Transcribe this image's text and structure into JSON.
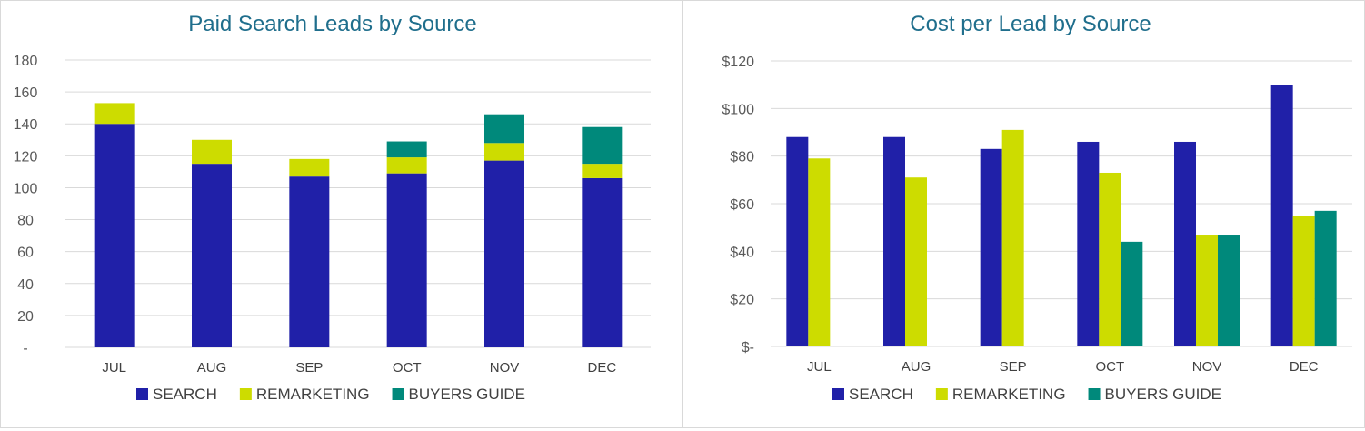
{
  "chart_data": [
    {
      "type": "bar",
      "stacked": true,
      "title": "Paid Search Leads by Source",
      "categories": [
        "JUL",
        "AUG",
        "SEP",
        "OCT",
        "NOV",
        "DEC"
      ],
      "series": [
        {
          "name": "SEARCH",
          "color": "#2020a8",
          "values": [
            140,
            115,
            107,
            109,
            117,
            106
          ]
        },
        {
          "name": "REMARKETING",
          "color": "#cddc00",
          "values": [
            13,
            15,
            11,
            10,
            11,
            9
          ]
        },
        {
          "name": "BUYERS GUIDE",
          "color": "#00897b",
          "values": [
            0,
            0,
            0,
            10,
            18,
            23
          ]
        }
      ],
      "ylim": [
        0,
        180
      ],
      "yticks": [
        0,
        20,
        40,
        60,
        80,
        100,
        120,
        140,
        160,
        180
      ],
      "ytick_labels": [
        "-",
        "20",
        "40",
        "60",
        "80",
        "100",
        "120",
        "140",
        "160",
        "180"
      ],
      "grid": true,
      "legend_position": "bottom"
    },
    {
      "type": "bar",
      "stacked": false,
      "title": "Cost per Lead by Source",
      "categories": [
        "JUL",
        "AUG",
        "SEP",
        "OCT",
        "NOV",
        "DEC"
      ],
      "series": [
        {
          "name": "SEARCH",
          "color": "#2020a8",
          "values": [
            88,
            88,
            83,
            86,
            86,
            110
          ]
        },
        {
          "name": "REMARKETING",
          "color": "#cddc00",
          "values": [
            79,
            71,
            91,
            73,
            47,
            55
          ]
        },
        {
          "name": "BUYERS GUIDE",
          "color": "#00897b",
          "values": [
            null,
            null,
            null,
            44,
            47,
            57
          ]
        }
      ],
      "ylim": [
        0,
        120
      ],
      "yticks": [
        0,
        20,
        40,
        60,
        80,
        100,
        120
      ],
      "ytick_labels": [
        "$-",
        "$20",
        "$40",
        "$60",
        "$80",
        "$100",
        "$120"
      ],
      "grid": true,
      "legend_position": "bottom"
    }
  ]
}
